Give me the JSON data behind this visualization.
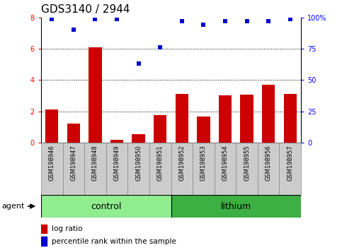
{
  "title": "GDS3140 / 2944",
  "samples": [
    "GSM198946",
    "GSM198947",
    "GSM198948",
    "GSM198949",
    "GSM198950",
    "GSM198951",
    "GSM198952",
    "GSM198953",
    "GSM198954",
    "GSM198955",
    "GSM198956",
    "GSM198957"
  ],
  "log_ratio": [
    2.1,
    1.2,
    6.1,
    0.15,
    0.55,
    1.75,
    3.1,
    1.65,
    3.0,
    3.05,
    3.7,
    3.1
  ],
  "percentile_rank": [
    99,
    90,
    99,
    99,
    63,
    76,
    97,
    94,
    97,
    97,
    97,
    99
  ],
  "groups": [
    {
      "label": "control",
      "start": 0,
      "end": 6,
      "color": "#90ee90"
    },
    {
      "label": "lithium",
      "start": 6,
      "end": 12,
      "color": "#3cb043"
    }
  ],
  "bar_color": "#cc0000",
  "dot_color": "#0000cc",
  "ylim_left": [
    0,
    8
  ],
  "ylim_right": [
    0,
    100
  ],
  "yticks_left": [
    0,
    2,
    4,
    6,
    8
  ],
  "yticks_right": [
    0,
    25,
    50,
    75,
    100
  ],
  "yticklabels_right": [
    "0",
    "25",
    "50",
    "75",
    "100%"
  ],
  "bg_color": "#ffffff",
  "agent_label": "agent",
  "legend_items": [
    "log ratio",
    "percentile rank within the sample"
  ],
  "title_fontsize": 11,
  "tick_fontsize": 7,
  "group_label_fontsize": 9,
  "bar_width": 0.6,
  "sample_bg_color": "#cccccc",
  "sample_border_color": "#888888"
}
